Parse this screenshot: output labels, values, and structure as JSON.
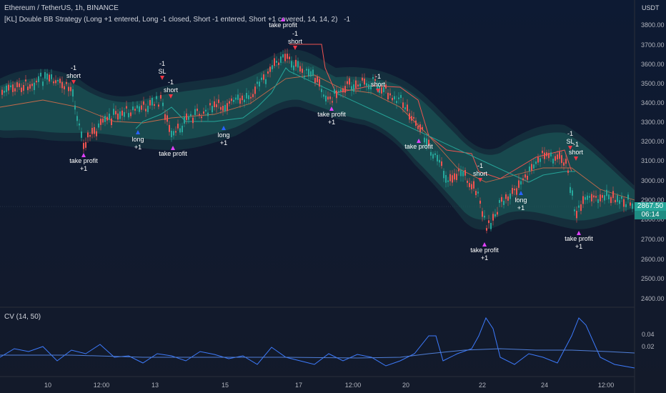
{
  "header": {
    "symbol_title": "Ethereum / TetherUS, 1h, BINANCE",
    "strategy_title": "[KL] Double BB Strategy (Long +1 entered, Long -1 closed, Short -1 entered, Short +1 covered, 14, 14, 2)",
    "strategy_pnl": "-1",
    "currency": "USDT"
  },
  "price_axis": {
    "ticks": [
      "3800.00",
      "3700.00",
      "3600.00",
      "3500.00",
      "3400.00",
      "3300.00",
      "3200.00",
      "3100.00",
      "3000.00",
      "2900.00",
      "2800.00",
      "2700.00",
      "2600.00",
      "2500.00",
      "2400.00"
    ],
    "last_price": "2867.50",
    "countdown": "06:14"
  },
  "time_axis": {
    "ticks": [
      "10",
      "12:00",
      "13",
      "15",
      "17",
      "12:00",
      "20",
      "22",
      "24",
      "12:00"
    ]
  },
  "indicator": {
    "title": "CV (14, 50)",
    "ticks": [
      "0.04",
      "0.02"
    ]
  },
  "markers": [
    {
      "top": "-1",
      "bottom": "short"
    },
    {
      "top": "-1",
      "bottom": "SL"
    },
    {
      "top": "-1",
      "bottom": "short"
    },
    {
      "top": "-1",
      "bottom": "short"
    },
    {
      "top": "-1",
      "bottom": "short"
    },
    {
      "top": "-1",
      "bottom": "short"
    },
    {
      "top": "-1",
      "bottom": "SL"
    },
    {
      "top": "-1",
      "bottom": "short"
    },
    {
      "top": "take profit",
      "bottom": ""
    },
    {
      "top": "take profit",
      "bottom": "+1"
    },
    {
      "top": "take profit",
      "bottom": ""
    },
    {
      "top": "take profit",
      "bottom": "+1"
    },
    {
      "top": "take profit",
      "bottom": ""
    },
    {
      "top": "take profit",
      "bottom": "+1"
    },
    {
      "top": "take profit",
      "bottom": "+1"
    },
    {
      "top": "long",
      "bottom": "+1"
    },
    {
      "top": "long",
      "bottom": "+1"
    },
    {
      "top": "long",
      "bottom": "+1"
    }
  ],
  "colors": {
    "bull": "#26a69a",
    "bear": "#ef5350",
    "band": "#1e6e6e",
    "short_arrow": "#f23645",
    "long_arrow": "#2962ff",
    "tp_arrow": "#e040fb",
    "cv_line": "#2962ff"
  }
}
